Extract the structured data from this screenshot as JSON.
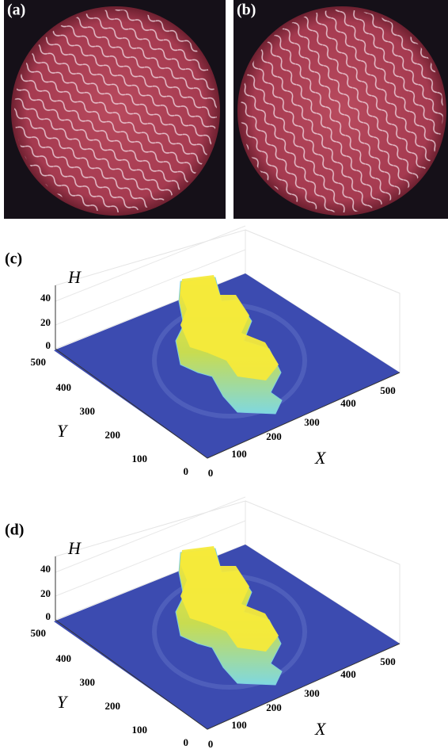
{
  "panels": [
    {
      "label": "(a)"
    },
    {
      "label": "(b)"
    },
    {
      "label": "(c)",
      "z_axis_label": "H",
      "x_axis_label": "X",
      "y_axis_label": "Y",
      "z_ticks": [
        0,
        20,
        40
      ],
      "y_ticks": [
        0,
        100,
        200,
        300,
        400,
        500
      ],
      "x_ticks": [
        0,
        100,
        200,
        300,
        400,
        500
      ]
    },
    {
      "label": "(d)",
      "z_axis_label": "H",
      "x_axis_label": "X",
      "y_axis_label": "Y",
      "z_ticks": [
        0,
        20,
        40
      ],
      "y_ticks": [
        0,
        100,
        200,
        300,
        400,
        500
      ],
      "x_ticks": [
        0,
        100,
        200,
        300,
        400,
        500
      ]
    }
  ]
}
